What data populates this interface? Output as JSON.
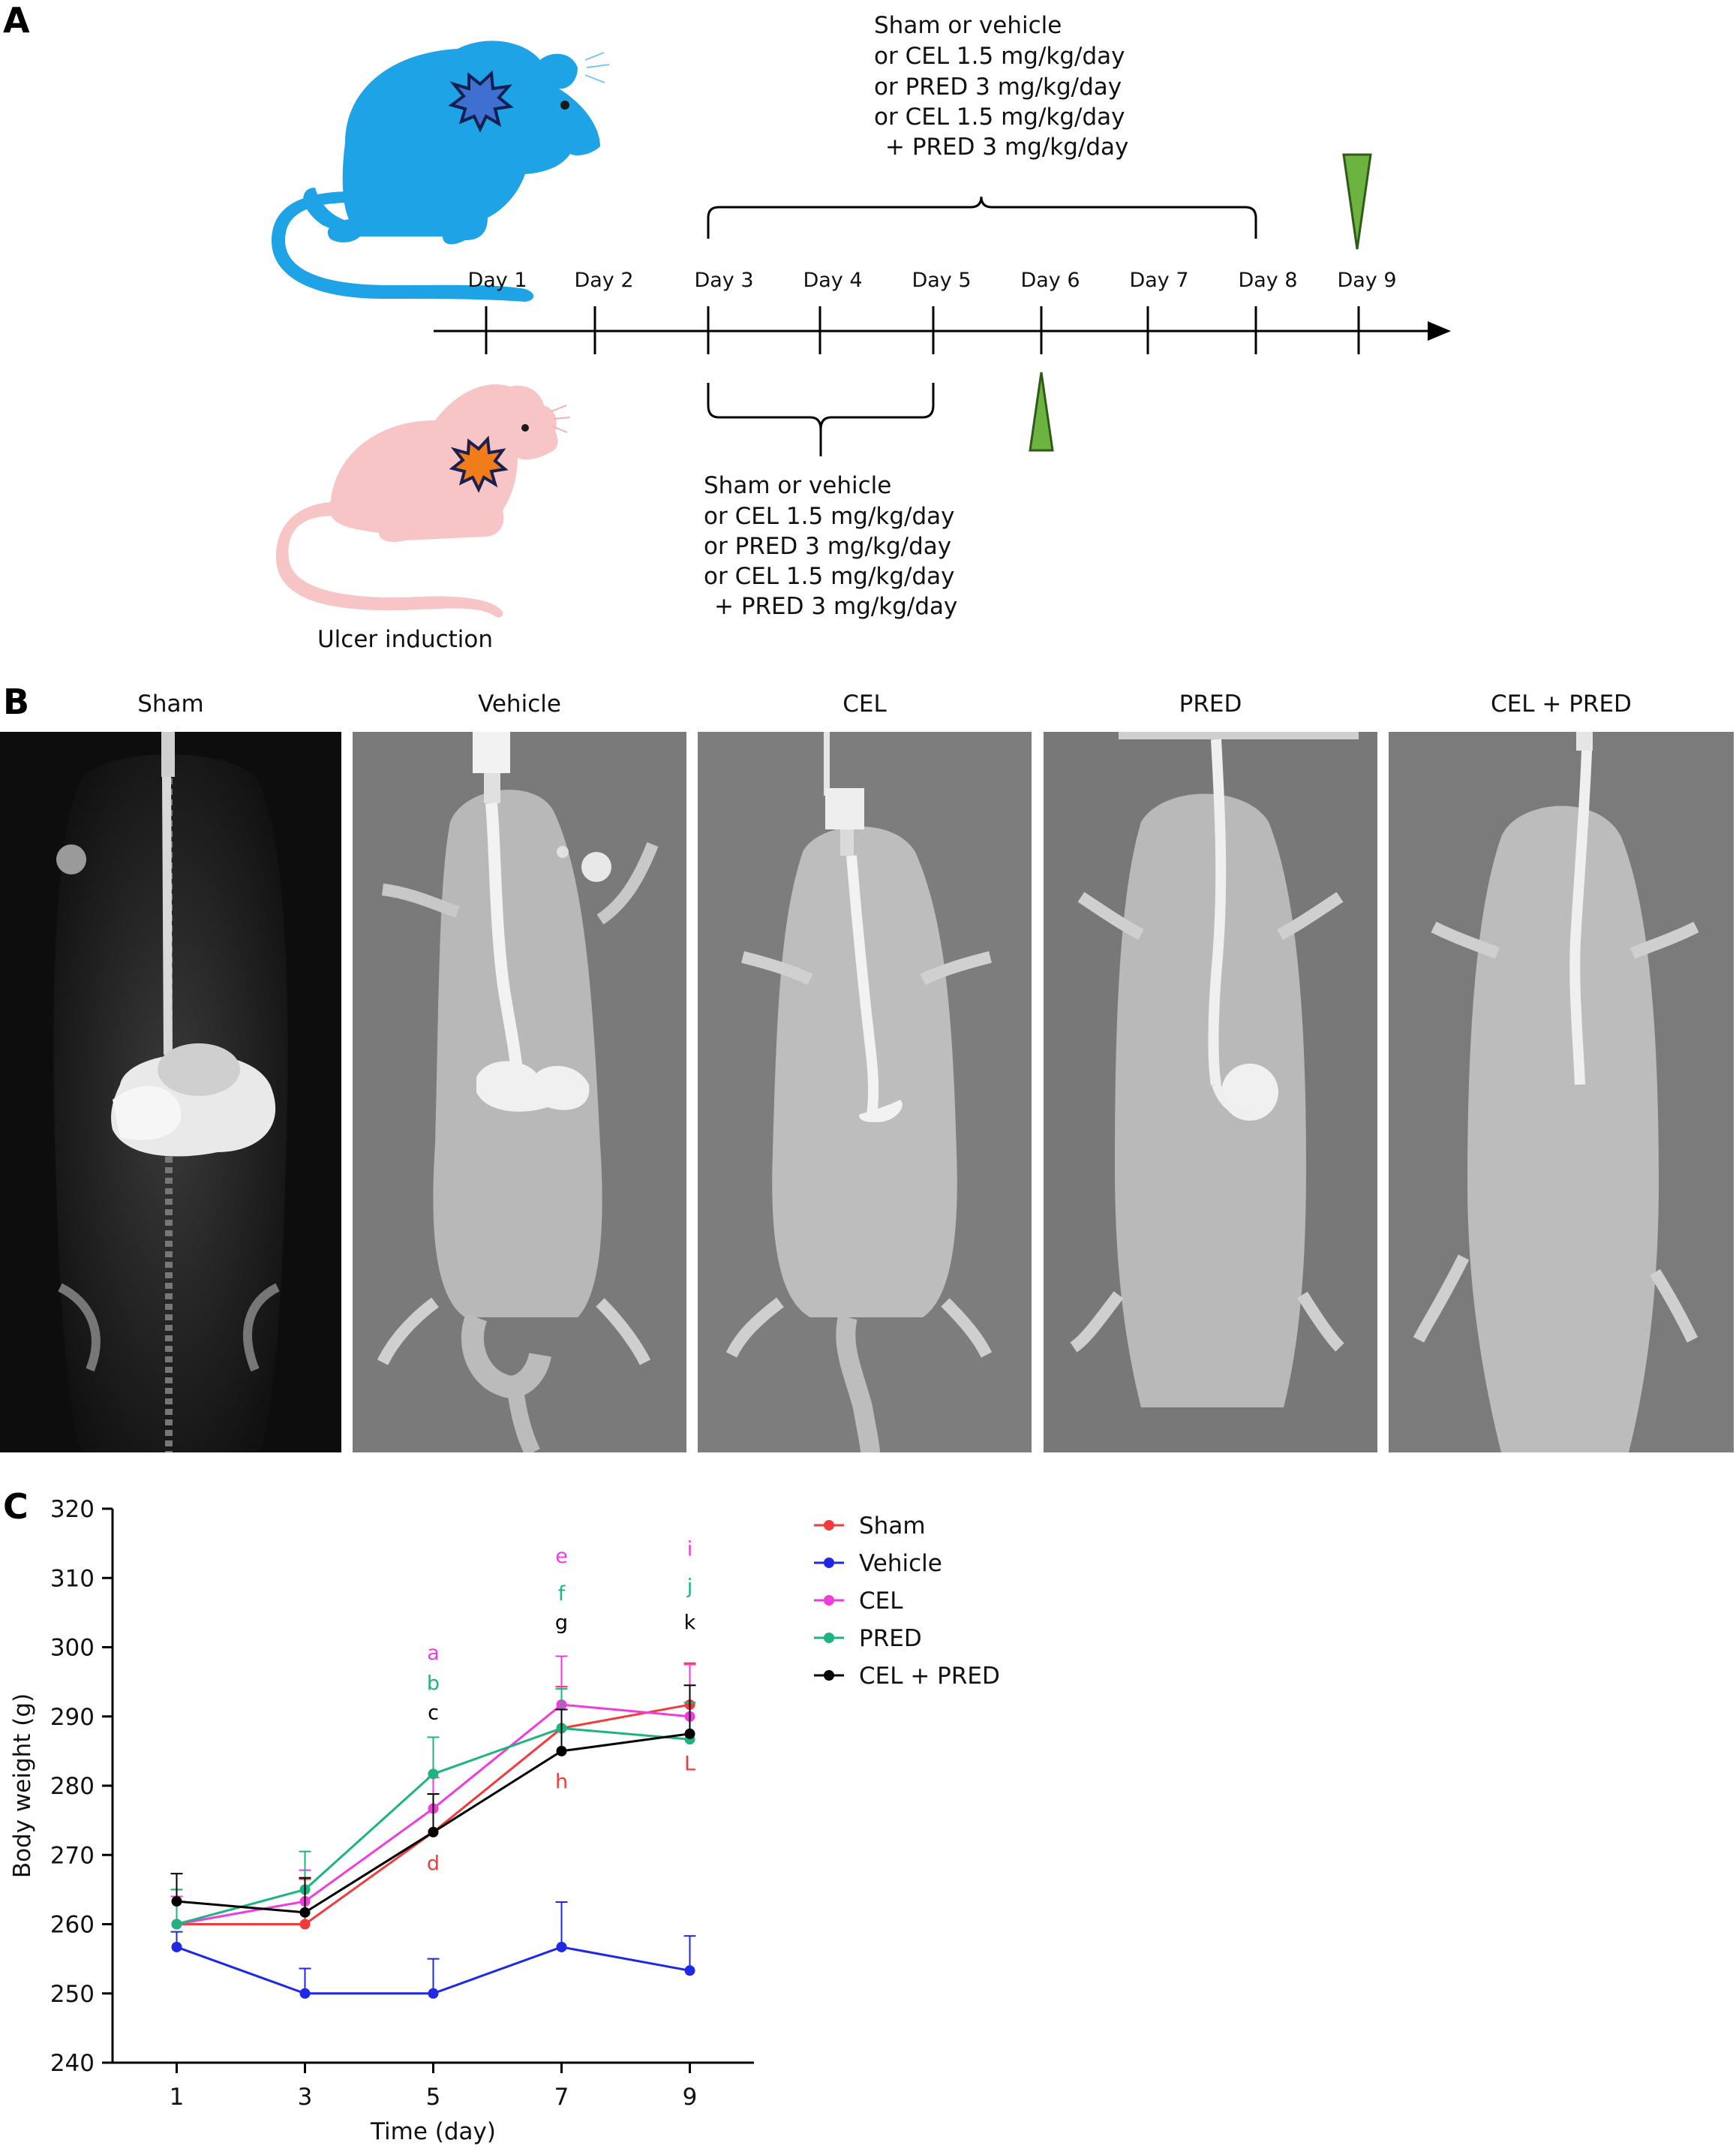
{
  "panels": {
    "a": {
      "letter": "A"
    },
    "b": {
      "letter": "B"
    },
    "c": {
      "letter": "C"
    }
  },
  "timeline": {
    "days": [
      "Day 1",
      "Day 2",
      "Day 3",
      "Day 4",
      "Day 5",
      "Day 6",
      "Day 7",
      "Day 8",
      "Day 9"
    ],
    "ulcer_label": "Ulcer induction",
    "top_treatment": [
      "Sham or vehicle",
      "or CEL 1.5 mg/kg/day",
      "or PRED 3 mg/kg/day",
      "or CEL 1.5 mg/kg/day",
      "+ PRED 3 mg/kg/day"
    ],
    "bottom_treatment": [
      "Sham or vehicle",
      "or CEL 1.5 mg/kg/day",
      "or PRED 3 mg/kg/day",
      "or CEL 1.5 mg/kg/day",
      "+ PRED 3 mg/kg/day"
    ],
    "colors": {
      "blue_rat": "#1ea3e6",
      "pink_rat": "#f7c5c5",
      "arrowhead": "#6db33f",
      "ulcer_blue": "#3f6fd0",
      "ulcer_orange": "#f07d1a"
    }
  },
  "xrays": {
    "titles": [
      "Sham",
      "Vehicle",
      "CEL",
      "PRED",
      "CEL + PRED"
    ]
  },
  "chart_data": {
    "type": "line",
    "xlabel": "Time (day)",
    "ylabel": "Body weight (g)",
    "x": [
      1,
      3,
      5,
      7,
      9
    ],
    "xlim": [
      0,
      10
    ],
    "ylim": [
      240,
      320
    ],
    "yticks": [
      240,
      250,
      260,
      270,
      280,
      290,
      300,
      310,
      320
    ],
    "xticks": [
      1,
      3,
      5,
      7,
      9
    ],
    "legend_position": "top-right",
    "grid": false,
    "series": [
      {
        "name": "Sham",
        "color": "#f03c3c",
        "values": [
          260,
          260,
          273.3,
          288.3,
          291.7
        ],
        "err": [
          5,
          6.5,
          5.5,
          6,
          6
        ]
      },
      {
        "name": "Vehicle",
        "color": "#1e28e6",
        "values": [
          256.7,
          250,
          250,
          256.7,
          253.3
        ],
        "err": [
          2.2,
          3.6,
          5,
          6.5,
          5
        ]
      },
      {
        "name": "CEL",
        "color": "#f03cdc",
        "values": [
          260,
          263.3,
          276.7,
          291.7,
          290
        ],
        "err": [
          4,
          4.5,
          4.5,
          7,
          7.5
        ]
      },
      {
        "name": "PRED",
        "color": "#1eb482",
        "values": [
          260,
          265,
          281.7,
          288.3,
          286.7
        ],
        "err": [
          5,
          5.5,
          5.3,
          5.7,
          5.3
        ]
      },
      {
        "name": "CEL + PRED",
        "color": "#000000",
        "values": [
          263.3,
          261.7,
          273.3,
          285,
          287.5
        ],
        "err": [
          4,
          5,
          5.5,
          6,
          7
        ]
      }
    ],
    "annotations": [
      {
        "text": "a",
        "x": 5,
        "y": 298.2,
        "color": "#f03cdc"
      },
      {
        "text": "b",
        "x": 5,
        "y": 293.8,
        "color": "#1eb482"
      },
      {
        "text": "c",
        "x": 5,
        "y": 289.6,
        "color": "#000000"
      },
      {
        "text": "d",
        "x": 5,
        "y": 267.8,
        "color": "#f03c3c"
      },
      {
        "text": "e",
        "x": 7,
        "y": 312.2,
        "color": "#f03cdc"
      },
      {
        "text": "f",
        "x": 7,
        "y": 306.8,
        "color": "#1eb482"
      },
      {
        "text": "g",
        "x": 7,
        "y": 302.6,
        "color": "#000000"
      },
      {
        "text": "h",
        "x": 7,
        "y": 279.6,
        "color": "#f03c3c"
      },
      {
        "text": "i",
        "x": 9,
        "y": 313.2,
        "color": "#f03cdc"
      },
      {
        "text": "j",
        "x": 9,
        "y": 307.8,
        "color": "#1eb482"
      },
      {
        "text": "k",
        "x": 9,
        "y": 302.6,
        "color": "#000000"
      },
      {
        "text": "L",
        "x": 9,
        "y": 282.2,
        "color": "#f03c3c"
      }
    ]
  }
}
